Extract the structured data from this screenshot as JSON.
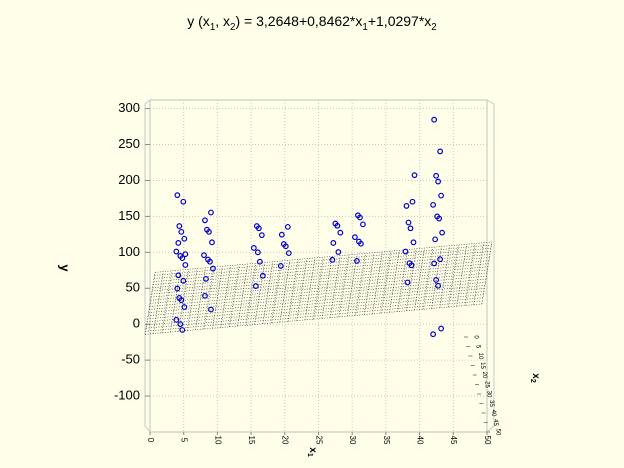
{
  "chart_data": {
    "type": "scatter3d",
    "title": [
      "y (x",
      "1",
      ", x",
      "2",
      ") = 3,2648+0,8462*x",
      "1",
      "+1,0297*x",
      "2"
    ],
    "xlabel": [
      "x",
      "1"
    ],
    "zlabel": [
      "x",
      "2"
    ],
    "ylabel": "y",
    "surface": {
      "intercept": 3.2648,
      "b1": 0.8462,
      "b2": 1.0297
    },
    "xlim": [
      0,
      50
    ],
    "xticks": [
      0,
      5,
      10,
      15,
      20,
      25,
      30,
      35,
      40,
      45,
      50
    ],
    "zlim": [
      0,
      50
    ],
    "zticks": [
      0,
      5,
      10,
      15,
      20,
      25,
      30,
      35,
      40,
      45,
      50
    ],
    "ylim": [
      -150,
      300
    ],
    "yticks": [
      -100,
      -50,
      0,
      50,
      100,
      150,
      200,
      250,
      300
    ],
    "grid": true,
    "color": "#0000cc",
    "x1": [
      4.5,
      4.5,
      4.5,
      4.5,
      4.5,
      4.5,
      4.5,
      4.5,
      4.5,
      4.5,
      4.5,
      4.5,
      4.5,
      4.5,
      4.5,
      4.5,
      4.5,
      4.5,
      4.5,
      4.5,
      8.6,
      8.6,
      8.6,
      8.6,
      8.6,
      8.6,
      8.6,
      8.6,
      8.6,
      8.6,
      8.6,
      8.6,
      16,
      16,
      16,
      16,
      16,
      16,
      16,
      16,
      20,
      20,
      20,
      20,
      20,
      20,
      27.5,
      27.5,
      27.5,
      27.5,
      27.5,
      27.5,
      31,
      31,
      31,
      31,
      31,
      31,
      31,
      38.5,
      38.5,
      38.5,
      38.5,
      38.5,
      38.5,
      38.5,
      38.5,
      38.5,
      38.5,
      42.6,
      42.6,
      42.6,
      42.6,
      42.6,
      42.6,
      42.6,
      42.6,
      42.6,
      42.6,
      42.6,
      42.6,
      42.6,
      42.6,
      42.6,
      42.6
    ],
    "x2": [
      10,
      40,
      20,
      30,
      5,
      45,
      25,
      35,
      15,
      50,
      10,
      40,
      20,
      30,
      5,
      45,
      25,
      35,
      15,
      50,
      10,
      40,
      20,
      30,
      5,
      45,
      25,
      35,
      15,
      50,
      10,
      40,
      20,
      30,
      5,
      45,
      25,
      35,
      15,
      50,
      10,
      40,
      20,
      30,
      5,
      45,
      25,
      35,
      15,
      50,
      10,
      40,
      20,
      30,
      5,
      45,
      25,
      35,
      15,
      50,
      10,
      40,
      20,
      30,
      5,
      45,
      25,
      35,
      15,
      10,
      40,
      20,
      30,
      5,
      45,
      25,
      35,
      15,
      50,
      10,
      40,
      20,
      30,
      5,
      45
    ],
    "y": [
      190,
      160,
      140,
      125,
      115,
      105,
      95,
      85,
      75,
      65,
      60,
      50,
      40,
      30,
      20,
      10,
      0,
      -15,
      120,
      80,
      155,
      145,
      135,
      125,
      110,
      100,
      90,
      80,
      70,
      60,
      50,
      10,
      140,
      130,
      120,
      110,
      100,
      80,
      60,
      50,
      135,
      125,
      115,
      105,
      95,
      85,
      140,
      130,
      120,
      110,
      100,
      90,
      155,
      145,
      135,
      125,
      115,
      105,
      95,
      190,
      175,
      160,
      145,
      130,
      115,
      100,
      85,
      75,
      65,
      295,
      230,
      210,
      195,
      180,
      165,
      150,
      140,
      125,
      110,
      95,
      80,
      65,
      50,
      0,
      -20
    ]
  }
}
